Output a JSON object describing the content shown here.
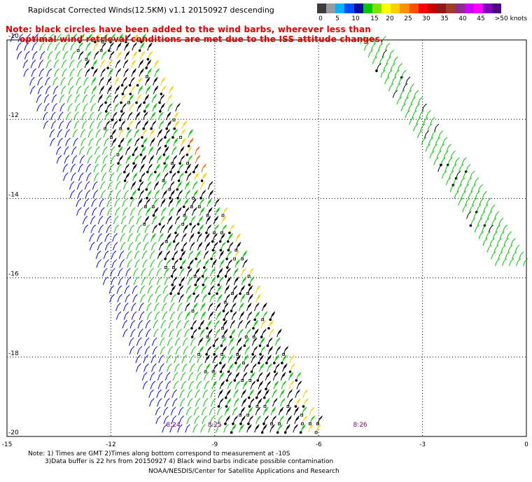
{
  "title": "Rapidscat Corrected Winds(12.5KM) v1.1 20150927 descending",
  "note_line1": "Note: black circles have been added to the wind barbs, wherever less than",
  "note_line2": "optimal wind retrieval conditions are met due to the ISS attitude changes.",
  "colorbar": {
    "labels": [
      "0",
      "5",
      "10",
      "15",
      "20",
      "25",
      "30",
      "35",
      "40",
      "45",
      ">50 knots"
    ],
    "colors": [
      "#3c3c3c",
      "#9a9a9a",
      "#00b4ff",
      "#0050ff",
      "#0a0a9e",
      "#00c800",
      "#80e000",
      "#ffff00",
      "#ffd000",
      "#ff9000",
      "#ff5000",
      "#ff0000",
      "#c80000",
      "#8c1a1a",
      "#a03c28",
      "#8c2d8c",
      "#d000ff",
      "#ff00ff",
      "#8000c0",
      "#500080"
    ]
  },
  "map": {
    "lon_ticks": [
      "-15",
      "-12",
      "-9",
      "-6",
      "-3",
      "0"
    ],
    "lat_ticks": [
      "-10",
      "-12",
      "-14",
      "-16",
      "-18",
      "-20"
    ],
    "lon_range": [
      -15,
      0
    ],
    "lat_range": [
      -20,
      -10
    ],
    "time_labels": [
      {
        "text": "8:24",
        "lon": -10.2
      },
      {
        "text": "8:25",
        "lon": -9.0
      },
      {
        "text": "8:26",
        "lon": -4.8
      }
    ]
  },
  "footer": {
    "line1": "Note: 1) Times are GMT 2)Times along bottom correspond to measurement at -10S",
    "line2": "3)Data buffer is 22 hrs from 20150927 4) Black wind barbs indicate possible contamination",
    "line3": "NOAA/NESDIS/Center for Satellite Applications and Research"
  },
  "colors": {
    "note": "#e60000",
    "grid": "#000000",
    "barb_blue": "#0000ff",
    "barb_green": "#00c800",
    "barb_black": "#000000",
    "barb_yellow": "#ffd000",
    "barb_orange": "#ff6000",
    "time_label": "#800080"
  }
}
